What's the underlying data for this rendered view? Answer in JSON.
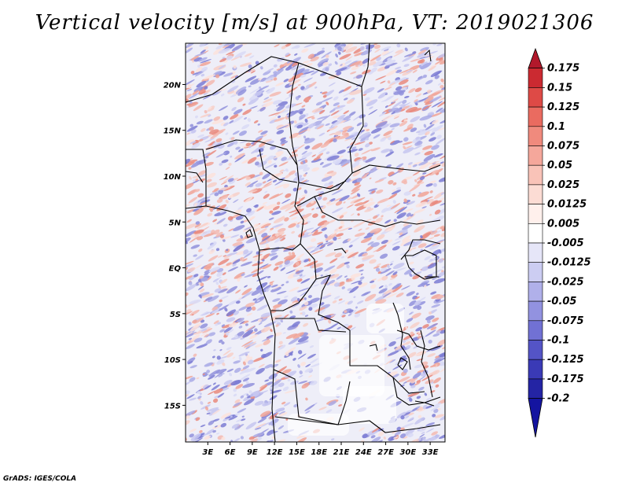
{
  "title": "Vertical velocity [m/s] at 900hPa, VT: 2019021306",
  "credit": "GrADS: IGES/COLA",
  "map": {
    "lat_labels": [
      "20N",
      "15N",
      "10N",
      "5N",
      "EQ",
      "5S",
      "10S",
      "15S"
    ],
    "lon_labels": [
      "3E",
      "6E",
      "9E",
      "12E",
      "15E",
      "18E",
      "21E",
      "24E",
      "27E",
      "30E",
      "33E"
    ],
    "lat_range": [
      -19,
      24.5
    ],
    "lon_range": [
      0,
      35
    ]
  },
  "colorbar": {
    "labels": [
      "0.175",
      "0.15",
      "0.125",
      "0.1",
      "0.075",
      "0.05",
      "0.025",
      "0.0125",
      "0.005",
      "-0.005",
      "-0.0125",
      "-0.025",
      "-0.05",
      "-0.075",
      "-0.1",
      "-0.125",
      "-0.175",
      "-0.2"
    ],
    "colors": [
      "#b2182b",
      "#cb2a31",
      "#de4a46",
      "#ea6b60",
      "#f08a7d",
      "#f5a79b",
      "#f9c3b8",
      "#fcdcd4",
      "#fff0ec",
      "#ffffff",
      "#e6e6f8",
      "#cccdf2",
      "#b0b0ea",
      "#9292e0",
      "#7171d4",
      "#5454c6",
      "#3a3ab6",
      "#2424a4",
      "#1414a0"
    ]
  }
}
